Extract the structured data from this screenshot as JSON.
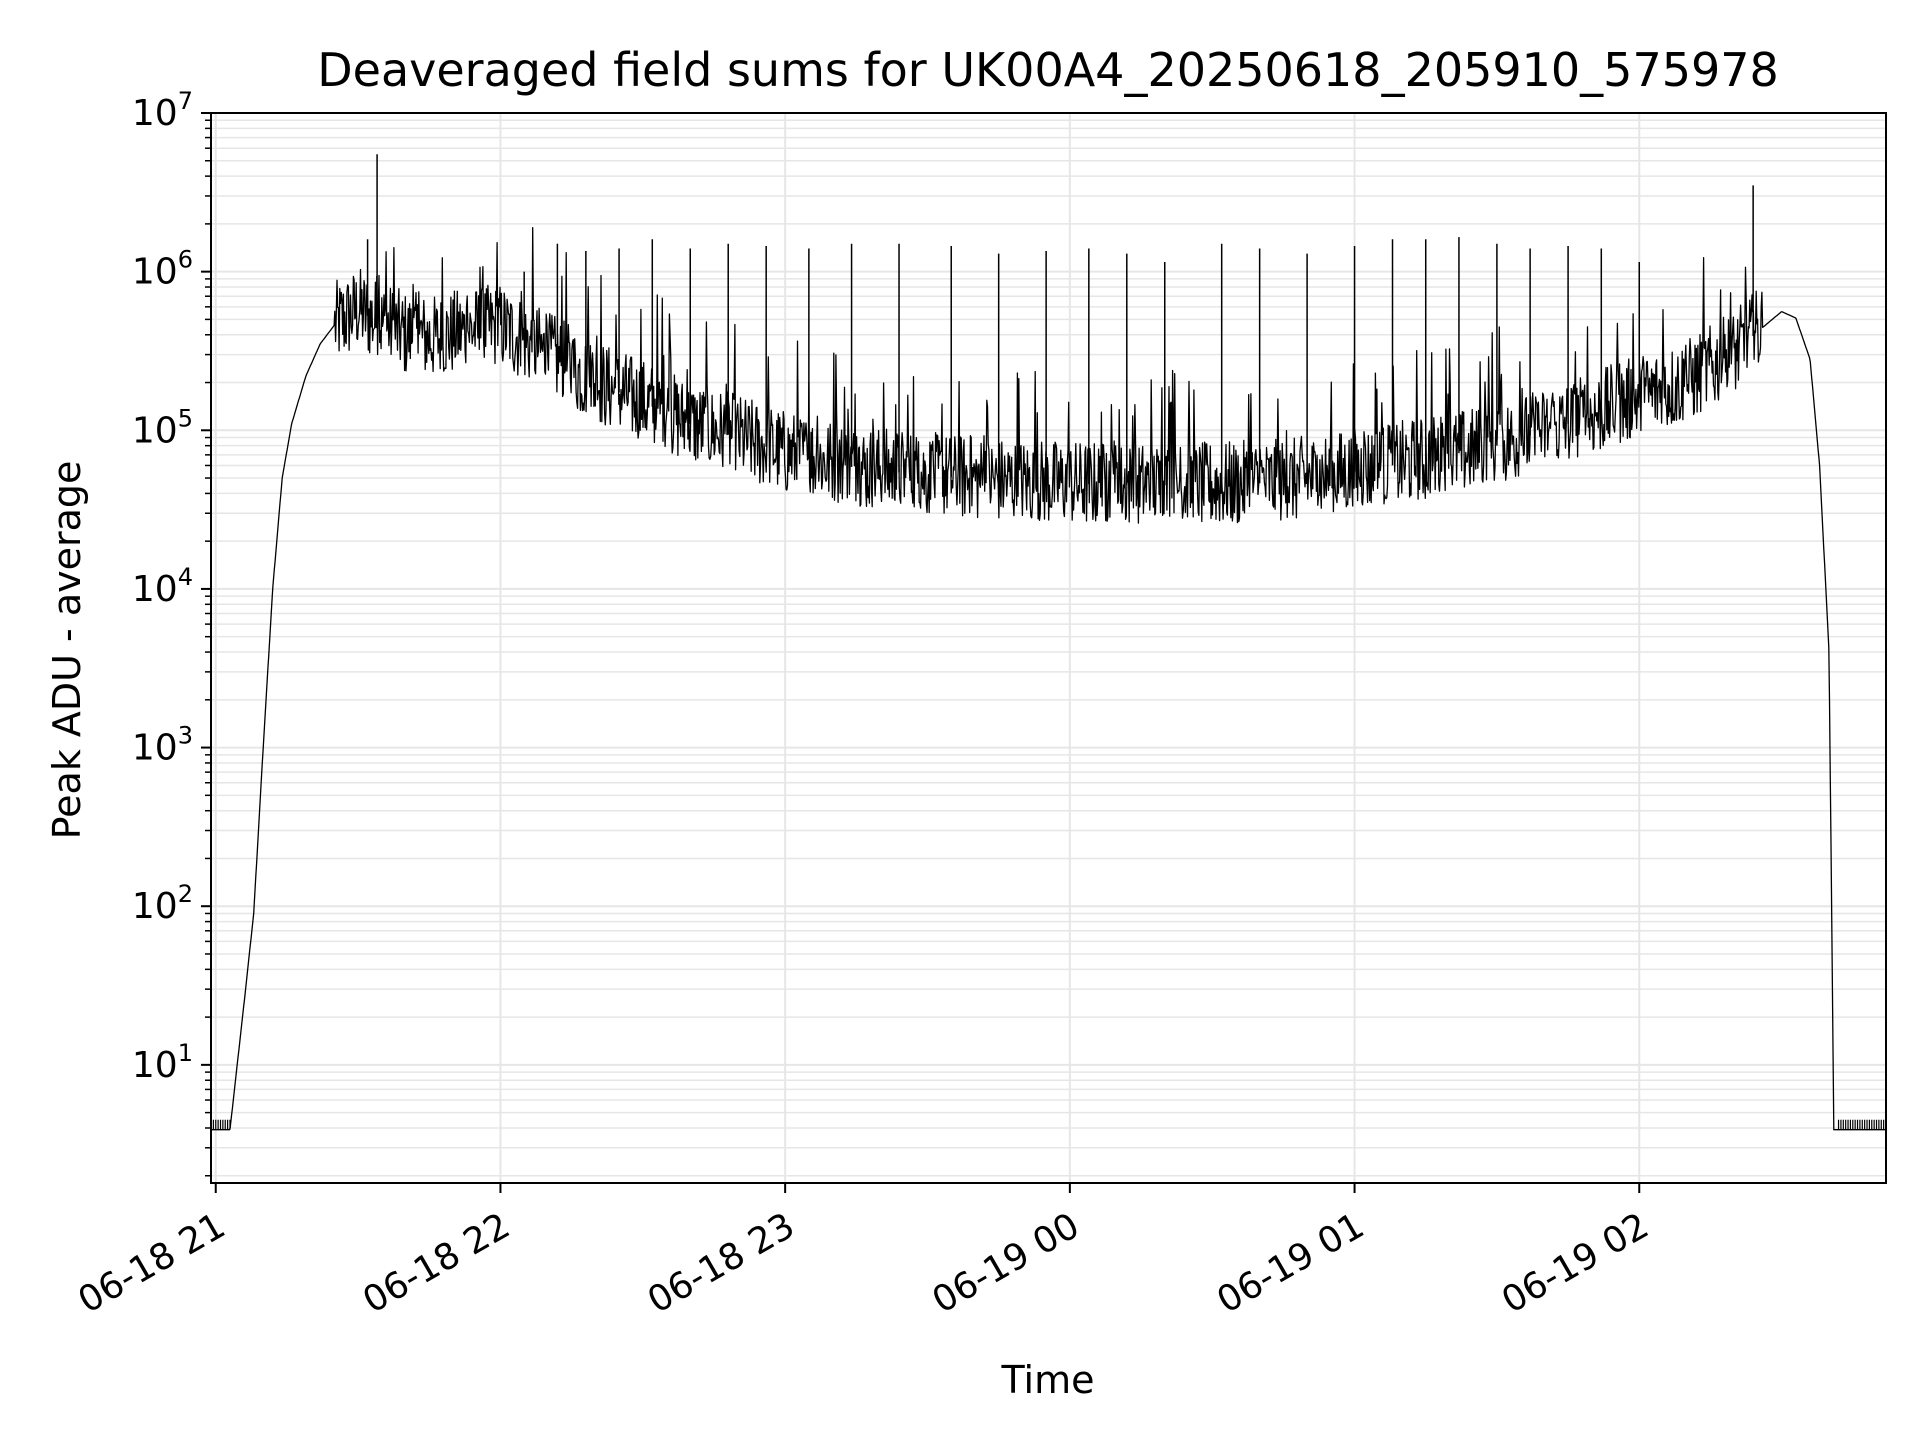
{
  "chart_data": {
    "type": "line",
    "title": "Deaveraged field sums for UK00A4_20250618_205910_575978",
    "xlabel": "Time",
    "ylabel": "Peak ADU - average",
    "y_scale": "log",
    "ylim": [
      1.8,
      10000000
    ],
    "xlim": [
      "2025-06-18 20:59",
      "2025-06-19 02:52"
    ],
    "grid": true,
    "line_color": "#000000",
    "grid_color": "#e6e6e6",
    "x_ticks": [
      {
        "value": "2025-06-18 21:00",
        "label": "06-18 21"
      },
      {
        "value": "2025-06-18 22:00",
        "label": "06-18 22"
      },
      {
        "value": "2025-06-18 23:00",
        "label": "06-18 23"
      },
      {
        "value": "2025-06-19 00:00",
        "label": "06-19 00"
      },
      {
        "value": "2025-06-19 01:00",
        "label": "06-19 01"
      },
      {
        "value": "2025-06-19 02:00",
        "label": "06-19 02"
      }
    ],
    "y_ticks": [
      {
        "value": 10,
        "base": "10",
        "exp": "1"
      },
      {
        "value": 100,
        "base": "10",
        "exp": "2"
      },
      {
        "value": 1000,
        "base": "10",
        "exp": "3"
      },
      {
        "value": 10000,
        "base": "10",
        "exp": "4"
      },
      {
        "value": 100000,
        "base": "10",
        "exp": "5"
      },
      {
        "value": 1000000,
        "base": "10",
        "exp": "6"
      },
      {
        "value": 10000000,
        "base": "10",
        "exp": "7"
      }
    ],
    "series": [
      {
        "x": [
          "2025-06-18 20:59",
          "2025-06-18 21:03",
          "2025-06-18 21:06",
          "2025-06-18 21:08",
          "2025-06-18 21:10",
          "2025-06-18 21:12",
          "2025-06-18 21:14",
          "2025-06-18 21:16",
          "2025-06-18 21:19",
          "2025-06-18 21:22",
          "2025-06-18 21:25",
          "2025-06-18 21:28",
          "2025-06-18 21:30",
          "2025-06-18 21:34",
          "2025-06-18 21:40",
          "2025-06-18 21:46",
          "2025-06-18 21:52",
          "2025-06-18 22:00",
          "2025-06-18 22:10",
          "2025-06-18 22:20",
          "2025-06-18 22:30",
          "2025-06-18 22:40",
          "2025-06-18 22:50",
          "2025-06-18 23:00",
          "2025-06-18 23:15",
          "2025-06-18 23:30",
          "2025-06-18 23:45",
          "2025-06-19 00:00",
          "2025-06-19 00:15",
          "2025-06-19 00:30",
          "2025-06-19 00:45",
          "2025-06-19 01:00",
          "2025-06-19 01:15",
          "2025-06-19 01:30",
          "2025-06-19 01:45",
          "2025-06-19 02:00",
          "2025-06-19 02:10",
          "2025-06-19 02:20",
          "2025-06-19 02:25",
          "2025-06-19 02:30",
          "2025-06-19 02:33",
          "2025-06-19 02:36",
          "2025-06-19 02:38",
          "2025-06-19 02:40",
          "2025-06-19 02:41",
          "2025-06-19 02:52"
        ],
        "y": [
          3.9,
          3.9,
          25,
          90,
          1000,
          10000,
          50000,
          110000,
          220000,
          350000,
          460000,
          520000,
          580000,
          480000,
          400000,
          380000,
          420000,
          450000,
          300000,
          200000,
          150000,
          110000,
          90000,
          72000,
          58000,
          52000,
          48000,
          46000,
          45000,
          45000,
          47000,
          55000,
          65000,
          80000,
          110000,
          160000,
          200000,
          300000,
          420000,
          560000,
          510000,
          280000,
          60000,
          4000,
          3.9,
          3.9
        ]
      }
    ],
    "spikes": [
      {
        "x": "2025-06-18 21:34",
        "y": 5500000
      },
      {
        "x": "2025-06-18 21:32",
        "y": 1600000
      },
      {
        "x": "2025-06-18 22:05",
        "y": 1000000
      },
      {
        "x": "2025-06-18 22:12",
        "y": 1500000
      },
      {
        "x": "2025-06-18 22:18",
        "y": 1350000
      },
      {
        "x": "2025-06-18 22:25",
        "y": 1400000
      },
      {
        "x": "2025-06-18 22:32",
        "y": 1600000
      },
      {
        "x": "2025-06-18 22:40",
        "y": 1400000
      },
      {
        "x": "2025-06-18 22:48",
        "y": 1500000
      },
      {
        "x": "2025-06-18 22:56",
        "y": 1450000
      },
      {
        "x": "2025-06-18 23:05",
        "y": 1400000
      },
      {
        "x": "2025-06-18 23:14",
        "y": 1500000
      },
      {
        "x": "2025-06-18 23:24",
        "y": 1500000
      },
      {
        "x": "2025-06-18 23:35",
        "y": 1450000
      },
      {
        "x": "2025-06-18 23:45",
        "y": 1300000
      },
      {
        "x": "2025-06-18 23:55",
        "y": 1350000
      },
      {
        "x": "2025-06-19 00:04",
        "y": 1400000
      },
      {
        "x": "2025-06-19 00:12",
        "y": 1300000
      },
      {
        "x": "2025-06-19 00:20",
        "y": 1150000
      },
      {
        "x": "2025-06-19 00:32",
        "y": 1500000
      },
      {
        "x": "2025-06-19 00:40",
        "y": 1400000
      },
      {
        "x": "2025-06-19 00:50",
        "y": 1300000
      },
      {
        "x": "2025-06-19 01:00",
        "y": 1450000
      },
      {
        "x": "2025-06-19 01:08",
        "y": 1600000
      },
      {
        "x": "2025-06-19 01:15",
        "y": 1600000
      },
      {
        "x": "2025-06-19 01:22",
        "y": 1650000
      },
      {
        "x": "2025-06-19 01:30",
        "y": 1500000
      },
      {
        "x": "2025-06-19 01:37",
        "y": 1400000
      },
      {
        "x": "2025-06-19 01:45",
        "y": 1450000
      },
      {
        "x": "2025-06-19 01:52",
        "y": 1400000
      },
      {
        "x": "2025-06-19 02:00",
        "y": 1150000
      },
      {
        "x": "2025-06-19 02:24",
        "y": 3500000
      }
    ]
  }
}
